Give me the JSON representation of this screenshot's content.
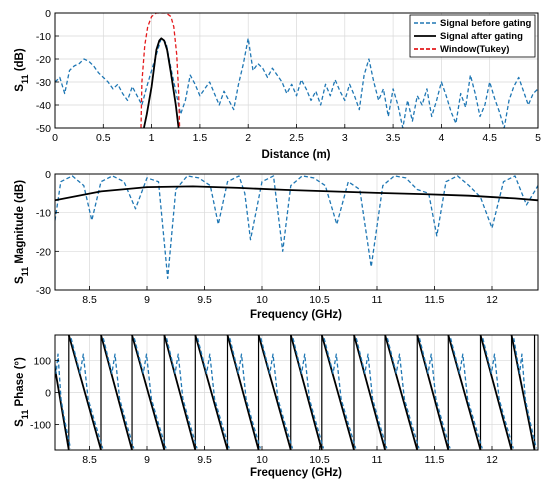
{
  "chart_data": [
    {
      "type": "line",
      "xlabel": "Distance (m)",
      "ylabel": "S11 (dB)",
      "xlim": [
        0,
        5
      ],
      "ylim": [
        -50,
        0
      ],
      "xticks": [
        "0",
        "0.5",
        "1",
        "1.5",
        "2",
        "2.5",
        "3",
        "3.5",
        "4",
        "4.5",
        "5"
      ],
      "yticks": [
        "0",
        "-10",
        "-20",
        "-30",
        "-40",
        "-50"
      ],
      "grid": true,
      "legend": "top-right",
      "series": [
        {
          "name": "Signal before gating",
          "color": "#1f77b4",
          "style": "dashed",
          "x": [
            0,
            0.05,
            0.1,
            0.15,
            0.2,
            0.25,
            0.3,
            0.35,
            0.4,
            0.45,
            0.5,
            0.55,
            0.6,
            0.65,
            0.7,
            0.75,
            0.8,
            0.85,
            0.9,
            0.95,
            1.0,
            1.05,
            1.1,
            1.15,
            1.2,
            1.25,
            1.3,
            1.35,
            1.4,
            1.45,
            1.5,
            1.55,
            1.6,
            1.65,
            1.7,
            1.75,
            1.8,
            1.85,
            1.9,
            1.95,
            2.0,
            2.05,
            2.1,
            2.15,
            2.2,
            2.25,
            2.3,
            2.35,
            2.4,
            2.45,
            2.5,
            2.55,
            2.6,
            2.65,
            2.7,
            2.75,
            2.8,
            2.85,
            2.9,
            2.95,
            3.0,
            3.05,
            3.1,
            3.15,
            3.2,
            3.25,
            3.3,
            3.35,
            3.4,
            3.45,
            3.5,
            3.55,
            3.6,
            3.65,
            3.7,
            3.75,
            3.8,
            3.85,
            3.9,
            3.95,
            4.0,
            4.05,
            4.1,
            4.15,
            4.2,
            4.25,
            4.3,
            4.35,
            4.4,
            4.45,
            4.5,
            4.55,
            4.6,
            4.65,
            4.7,
            4.75,
            4.8,
            4.85,
            4.9,
            4.95,
            5.0
          ],
          "y": [
            -30,
            -28,
            -35,
            -25,
            -23,
            -22,
            -20,
            -21,
            -23,
            -26,
            -28,
            -30,
            -33,
            -31,
            -35,
            -38,
            -32,
            -36,
            -40,
            -32,
            -25,
            -18,
            -11,
            -13,
            -24,
            -34,
            -44,
            -38,
            -27,
            -31,
            -36,
            -33,
            -30,
            -35,
            -40,
            -34,
            -38,
            -42,
            -31,
            -22,
            -11,
            -25,
            -22,
            -24,
            -28,
            -24,
            -27,
            -30,
            -35,
            -31,
            -36,
            -29,
            -33,
            -38,
            -34,
            -40,
            -31,
            -36,
            -29,
            -34,
            -38,
            -31,
            -36,
            -42,
            -27,
            -20,
            -30,
            -38,
            -33,
            -45,
            -33,
            -40,
            -50,
            -38,
            -47,
            -36,
            -40,
            -33,
            -45,
            -38,
            -30,
            -36,
            -43,
            -48,
            -35,
            -41,
            -27,
            -35,
            -45,
            -40,
            -30,
            -37,
            -43,
            -50,
            -38,
            -32,
            -28,
            -34,
            -40,
            -35,
            -33
          ]
        },
        {
          "name": "Signal after gating",
          "color": "#000000",
          "style": "solid",
          "x": [
            0.92,
            0.95,
            1.0,
            1.05,
            1.08,
            1.1,
            1.13,
            1.16,
            1.2,
            1.25,
            1.28
          ],
          "y": [
            -50,
            -44,
            -32,
            -16,
            -12,
            -11,
            -12,
            -16,
            -26,
            -40,
            -50
          ]
        },
        {
          "name": "Window(Tukey)",
          "color": "#e41a1c",
          "style": "dashed",
          "x": [
            0.89,
            0.9,
            0.93,
            0.96,
            1.0,
            1.05,
            1.1,
            1.15,
            1.2,
            1.23,
            1.26,
            1.28,
            1.29
          ],
          "y": [
            -50,
            -30,
            -14,
            -6,
            -1.5,
            0,
            0,
            0,
            -1.5,
            -6,
            -18,
            -34,
            -50
          ]
        }
      ]
    },
    {
      "type": "line",
      "xlabel": "Frequency (GHz)",
      "ylabel": "S11 Magnitude (dB)",
      "xlim": [
        8.2,
        12.4
      ],
      "ylim": [
        -30,
        0
      ],
      "xticks": [
        "8.5",
        "9",
        "9.5",
        "10",
        "10.5",
        "11",
        "11.5",
        "12"
      ],
      "yticks": [
        "0",
        "-10",
        "-20",
        "-30"
      ],
      "grid": true,
      "series": [
        {
          "name": "Signal before gating",
          "color": "#1f77b4",
          "style": "dashed",
          "x": [
            8.2,
            8.25,
            8.35,
            8.45,
            8.52,
            8.6,
            8.7,
            8.8,
            8.9,
            9.0,
            9.1,
            9.18,
            9.25,
            9.35,
            9.45,
            9.55,
            9.62,
            9.7,
            9.8,
            9.85,
            9.9,
            10.0,
            10.1,
            10.18,
            10.25,
            10.35,
            10.45,
            10.55,
            10.65,
            10.75,
            10.85,
            10.95,
            11.05,
            11.15,
            11.25,
            11.35,
            11.45,
            11.52,
            11.6,
            11.7,
            11.8,
            11.9,
            12.0,
            12.1,
            12.2,
            12.3,
            12.4
          ],
          "y": [
            -12,
            -2,
            -0.5,
            -3,
            -12,
            -2,
            -0.5,
            -2,
            -9,
            -1,
            -2,
            -27,
            -4,
            -0.5,
            -1,
            -3,
            -13,
            -2,
            -0.5,
            -5,
            -17,
            -2,
            -0.5,
            -20,
            -3,
            -0.5,
            -1,
            -3,
            -13,
            -2,
            -4,
            -24,
            -3,
            -0.5,
            -1,
            -4,
            -5,
            -16,
            -2,
            -0.5,
            -3,
            -6,
            -14,
            -2,
            -0.5,
            -8,
            -3
          ]
        },
        {
          "name": "Signal after gating",
          "color": "#000000",
          "style": "solid",
          "x": [
            8.2,
            8.6,
            9.0,
            9.4,
            9.8,
            10.2,
            10.6,
            11.0,
            11.4,
            11.8,
            12.2,
            12.4
          ],
          "y": [
            -6.8,
            -4.5,
            -3.4,
            -3.2,
            -3.6,
            -4.1,
            -4.5,
            -4.9,
            -5.2,
            -5.6,
            -6.3,
            -6.8
          ]
        }
      ]
    },
    {
      "type": "line",
      "xlabel": "Frequency (GHz)",
      "ylabel": "S11 Phase (°)",
      "xlim": [
        8.2,
        12.4
      ],
      "ylim": [
        -180,
        180
      ],
      "xticks": [
        "8.5",
        "9",
        "9.5",
        "10",
        "10.5",
        "11",
        "11.5",
        "12"
      ],
      "yticks": [
        "100",
        "0",
        "-100"
      ],
      "grid": true,
      "wrap_starts": [
        8.15,
        8.32,
        8.6,
        8.87,
        9.15,
        9.42,
        9.7,
        9.97,
        10.25,
        10.52,
        10.8,
        11.07,
        11.35,
        11.62,
        11.9,
        12.17,
        12.37
      ],
      "series": [
        {
          "name": "Signal before gating",
          "color": "#1f77b4",
          "style": "dashed"
        },
        {
          "name": "Signal after gating",
          "color": "#000000",
          "style": "solid"
        }
      ]
    }
  ]
}
